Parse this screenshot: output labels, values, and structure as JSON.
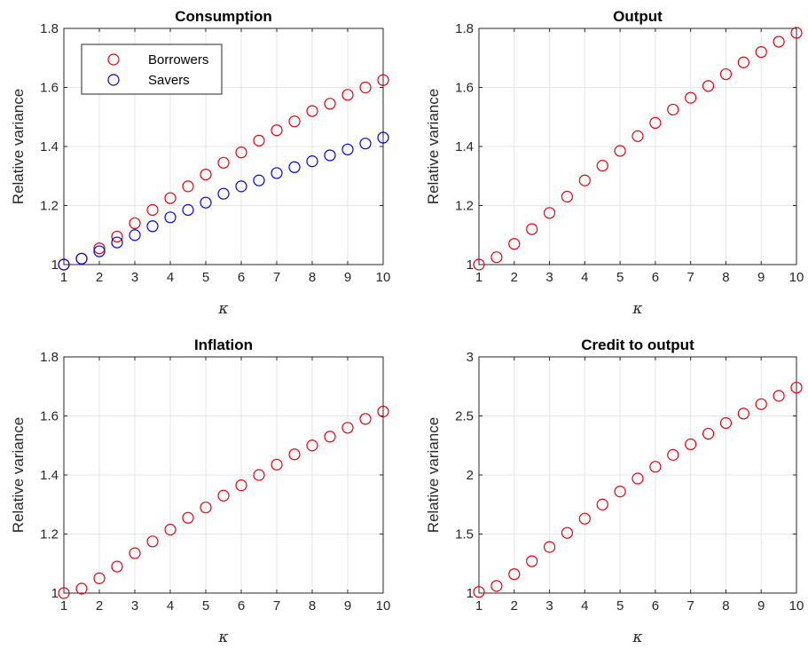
{
  "chart_data": [
    {
      "type": "scatter",
      "title": "Consumption",
      "xlabel": "κ",
      "ylabel": "Relative variance",
      "xlim": [
        1,
        10
      ],
      "ylim": [
        1,
        1.8
      ],
      "xticks": [
        "1",
        "2",
        "3",
        "4",
        "5",
        "6",
        "7",
        "8",
        "9",
        "10"
      ],
      "yticks": [
        "1",
        "1.2",
        "1.4",
        "1.6",
        "1.8"
      ],
      "grid": true,
      "legend": "top-left",
      "x": [
        1,
        1.5,
        2,
        2.5,
        3,
        3.5,
        4,
        4.5,
        5,
        5.5,
        6,
        6.5,
        7,
        7.5,
        8,
        8.5,
        9,
        9.5,
        10
      ],
      "series": [
        {
          "name": "Borrowers",
          "color": "#e8000b",
          "values": [
            1.0,
            1.02,
            1.055,
            1.095,
            1.14,
            1.185,
            1.225,
            1.265,
            1.305,
            1.345,
            1.38,
            1.42,
            1.455,
            1.485,
            1.52,
            1.545,
            1.575,
            1.6,
            1.625
          ]
        },
        {
          "name": "Savers",
          "color": "#0000e0",
          "values": [
            1.0,
            1.02,
            1.045,
            1.075,
            1.1,
            1.13,
            1.16,
            1.185,
            1.21,
            1.24,
            1.265,
            1.285,
            1.31,
            1.33,
            1.35,
            1.37,
            1.39,
            1.41,
            1.43
          ]
        }
      ]
    },
    {
      "type": "scatter",
      "title": "Output",
      "xlabel": "κ",
      "ylabel": "Relative variance",
      "xlim": [
        1,
        10
      ],
      "ylim": [
        1,
        1.8
      ],
      "xticks": [
        "1",
        "2",
        "3",
        "4",
        "5",
        "6",
        "7",
        "8",
        "9",
        "10"
      ],
      "yticks": [
        "1",
        "1.2",
        "1.4",
        "1.6",
        "1.8"
      ],
      "grid": true,
      "x": [
        1,
        1.5,
        2,
        2.5,
        3,
        3.5,
        4,
        4.5,
        5,
        5.5,
        6,
        6.5,
        7,
        7.5,
        8,
        8.5,
        9,
        9.5,
        10
      ],
      "series": [
        {
          "color": "#e8000b",
          "values": [
            1.0,
            1.025,
            1.07,
            1.12,
            1.175,
            1.23,
            1.285,
            1.335,
            1.385,
            1.435,
            1.48,
            1.525,
            1.565,
            1.605,
            1.645,
            1.685,
            1.72,
            1.755,
            1.785
          ]
        }
      ]
    },
    {
      "type": "scatter",
      "title": "Inflation",
      "xlabel": "κ",
      "ylabel": "Relative variance",
      "xlim": [
        1,
        10
      ],
      "ylim": [
        1,
        1.8
      ],
      "xticks": [
        "1",
        "2",
        "3",
        "4",
        "5",
        "6",
        "7",
        "8",
        "9",
        "10"
      ],
      "yticks": [
        "1",
        "1.2",
        "1.4",
        "1.6",
        "1.8"
      ],
      "grid": true,
      "x": [
        1,
        1.5,
        2,
        2.5,
        3,
        3.5,
        4,
        4.5,
        5,
        5.5,
        6,
        6.5,
        7,
        7.5,
        8,
        8.5,
        9,
        9.5,
        10
      ],
      "series": [
        {
          "color": "#e8000b",
          "values": [
            1.0,
            1.015,
            1.05,
            1.09,
            1.135,
            1.175,
            1.215,
            1.255,
            1.29,
            1.33,
            1.365,
            1.4,
            1.435,
            1.47,
            1.5,
            1.53,
            1.56,
            1.59,
            1.615
          ]
        }
      ]
    },
    {
      "type": "scatter",
      "title": "Credit to output",
      "xlabel": "κ",
      "ylabel": "Relative variance",
      "xlim": [
        1,
        10
      ],
      "ylim": [
        1,
        3
      ],
      "xticks": [
        "1",
        "2",
        "3",
        "4",
        "5",
        "6",
        "7",
        "8",
        "9",
        "10"
      ],
      "yticks": [
        "1",
        "1.5",
        "2",
        "2.5",
        "3"
      ],
      "grid": true,
      "x": [
        1,
        1.5,
        2,
        2.5,
        3,
        3.5,
        4,
        4.5,
        5,
        5.5,
        6,
        6.5,
        7,
        7.5,
        8,
        8.5,
        9,
        9.5,
        10
      ],
      "series": [
        {
          "color": "#e8000b",
          "values": [
            1.01,
            1.06,
            1.16,
            1.27,
            1.39,
            1.51,
            1.63,
            1.75,
            1.86,
            1.97,
            2.07,
            2.17,
            2.26,
            2.35,
            2.44,
            2.52,
            2.6,
            2.67,
            2.74
          ]
        }
      ]
    }
  ]
}
